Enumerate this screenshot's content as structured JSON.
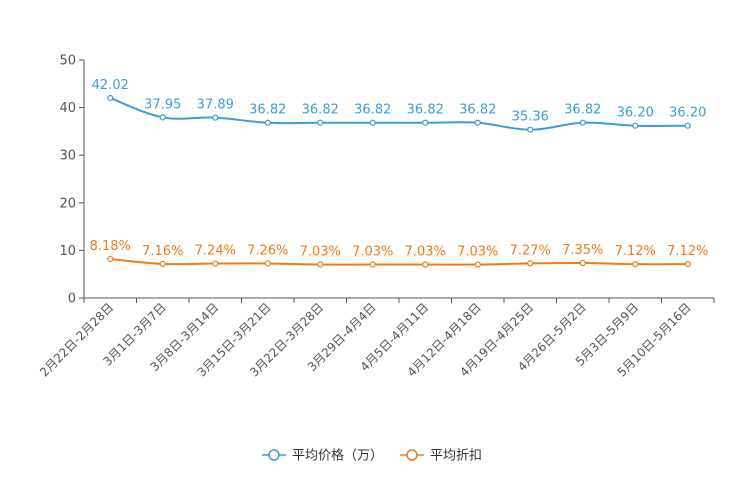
{
  "chart_data": {
    "type": "line",
    "title": "",
    "xlabel": "",
    "ylabel": "",
    "ylim": [
      0,
      50
    ],
    "yticks": [
      0,
      10,
      20,
      30,
      40,
      50
    ],
    "grid": false,
    "legend_position": "bottom-center",
    "categories": [
      "2月22日-2月28日",
      "3月1日-3月7日",
      "3月8日-3月14日",
      "3月15日-3月21日",
      "3月22日-3月28日",
      "3月29日-4月4日",
      "4月5日-4月11日",
      "4月12日-4月18日",
      "4月19日-4月25日",
      "4月26日-5月2日",
      "5月3日-5月9日",
      "5月10日-5月16日"
    ],
    "series": [
      {
        "name": "平均价格（万）",
        "color": "#3b9fd4",
        "values": [
          42.02,
          37.95,
          37.89,
          36.82,
          36.82,
          36.82,
          36.82,
          36.82,
          35.36,
          36.82,
          36.2,
          36.2
        ],
        "labels": [
          "42.02",
          "37.95",
          "37.89",
          "36.82",
          "36.82",
          "36.82",
          "36.82",
          "36.82",
          "35.36",
          "36.82",
          "36.20",
          "36.20"
        ]
      },
      {
        "name": "平均折扣",
        "color": "#f07a1a",
        "values": [
          8.18,
          7.16,
          7.24,
          7.26,
          7.03,
          7.03,
          7.03,
          7.03,
          7.27,
          7.35,
          7.12,
          7.12
        ],
        "labels": [
          "8.18%",
          "7.16%",
          "7.24%",
          "7.26%",
          "7.03%",
          "7.03%",
          "7.03%",
          "7.03%",
          "7.27%",
          "7.35%",
          "7.12%",
          "7.12%"
        ]
      }
    ]
  }
}
